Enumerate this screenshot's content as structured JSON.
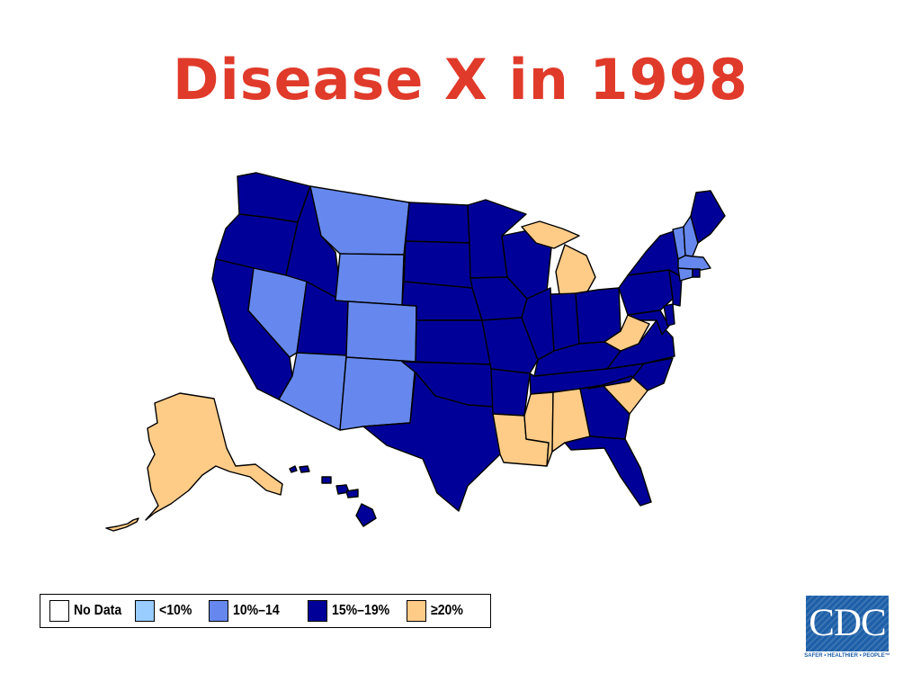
{
  "title": "Disease X in 1998",
  "legend": {
    "items": [
      {
        "key": "nodata",
        "label": "No Data",
        "color": "#ffffff"
      },
      {
        "key": "lt10",
        "label": "<10%",
        "color": "#99ccff"
      },
      {
        "key": "10to14",
        "label": "10%–14",
        "color": "#6688ee"
      },
      {
        "key": "15to19",
        "label": "15%–19%",
        "color": "#000099"
      },
      {
        "key": "ge20",
        "label": "≥20%",
        "color": "#ffcc88"
      }
    ]
  },
  "map": {
    "categories": {
      "10to14": [
        "Montana",
        "Wyoming",
        "Nevada",
        "Colorado",
        "Arizona",
        "New Mexico",
        "Vermont",
        "New Hampshire",
        "Massachusetts",
        "Connecticut"
      ],
      "15to19": [
        "Washington",
        "Oregon",
        "Idaho",
        "California",
        "Utah",
        "North Dakota",
        "South Dakota",
        "Nebraska",
        "Kansas",
        "Oklahoma",
        "Texas",
        "Minnesota",
        "Iowa",
        "Missouri",
        "Arkansas",
        "Wisconsin",
        "Illinois",
        "Indiana",
        "Ohio",
        "Kentucky",
        "Tennessee",
        "Georgia",
        "Florida",
        "Virginia",
        "North Carolina",
        "Pennsylvania",
        "New York",
        "New Jersey",
        "Delaware",
        "Maryland",
        "Maine",
        "Rhode Island",
        "Hawaii"
      ],
      "ge20": [
        "Alaska",
        "Michigan",
        "West Virginia",
        "South Carolina",
        "Louisiana",
        "Mississippi",
        "Alabama"
      ]
    }
  },
  "logo": {
    "text": "CDC",
    "tagline": "SAFER • HEALTHIER • PEOPLE™"
  }
}
